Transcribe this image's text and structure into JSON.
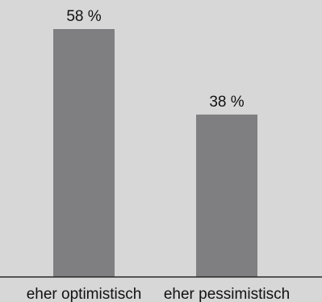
{
  "chart_data": {
    "type": "bar",
    "categories": [
      "eher optimistisch",
      "eher pessimistisch"
    ],
    "values": [
      58,
      38
    ],
    "data_labels": [
      "58 %",
      "38 %"
    ],
    "unit": "%",
    "ylim": [
      0,
      58
    ],
    "grid": false,
    "legend": "none",
    "colors": {
      "background": "#d7d7d7",
      "bar": "#7f7f82",
      "axis": "#2a2a2a",
      "text": "#111111"
    }
  }
}
